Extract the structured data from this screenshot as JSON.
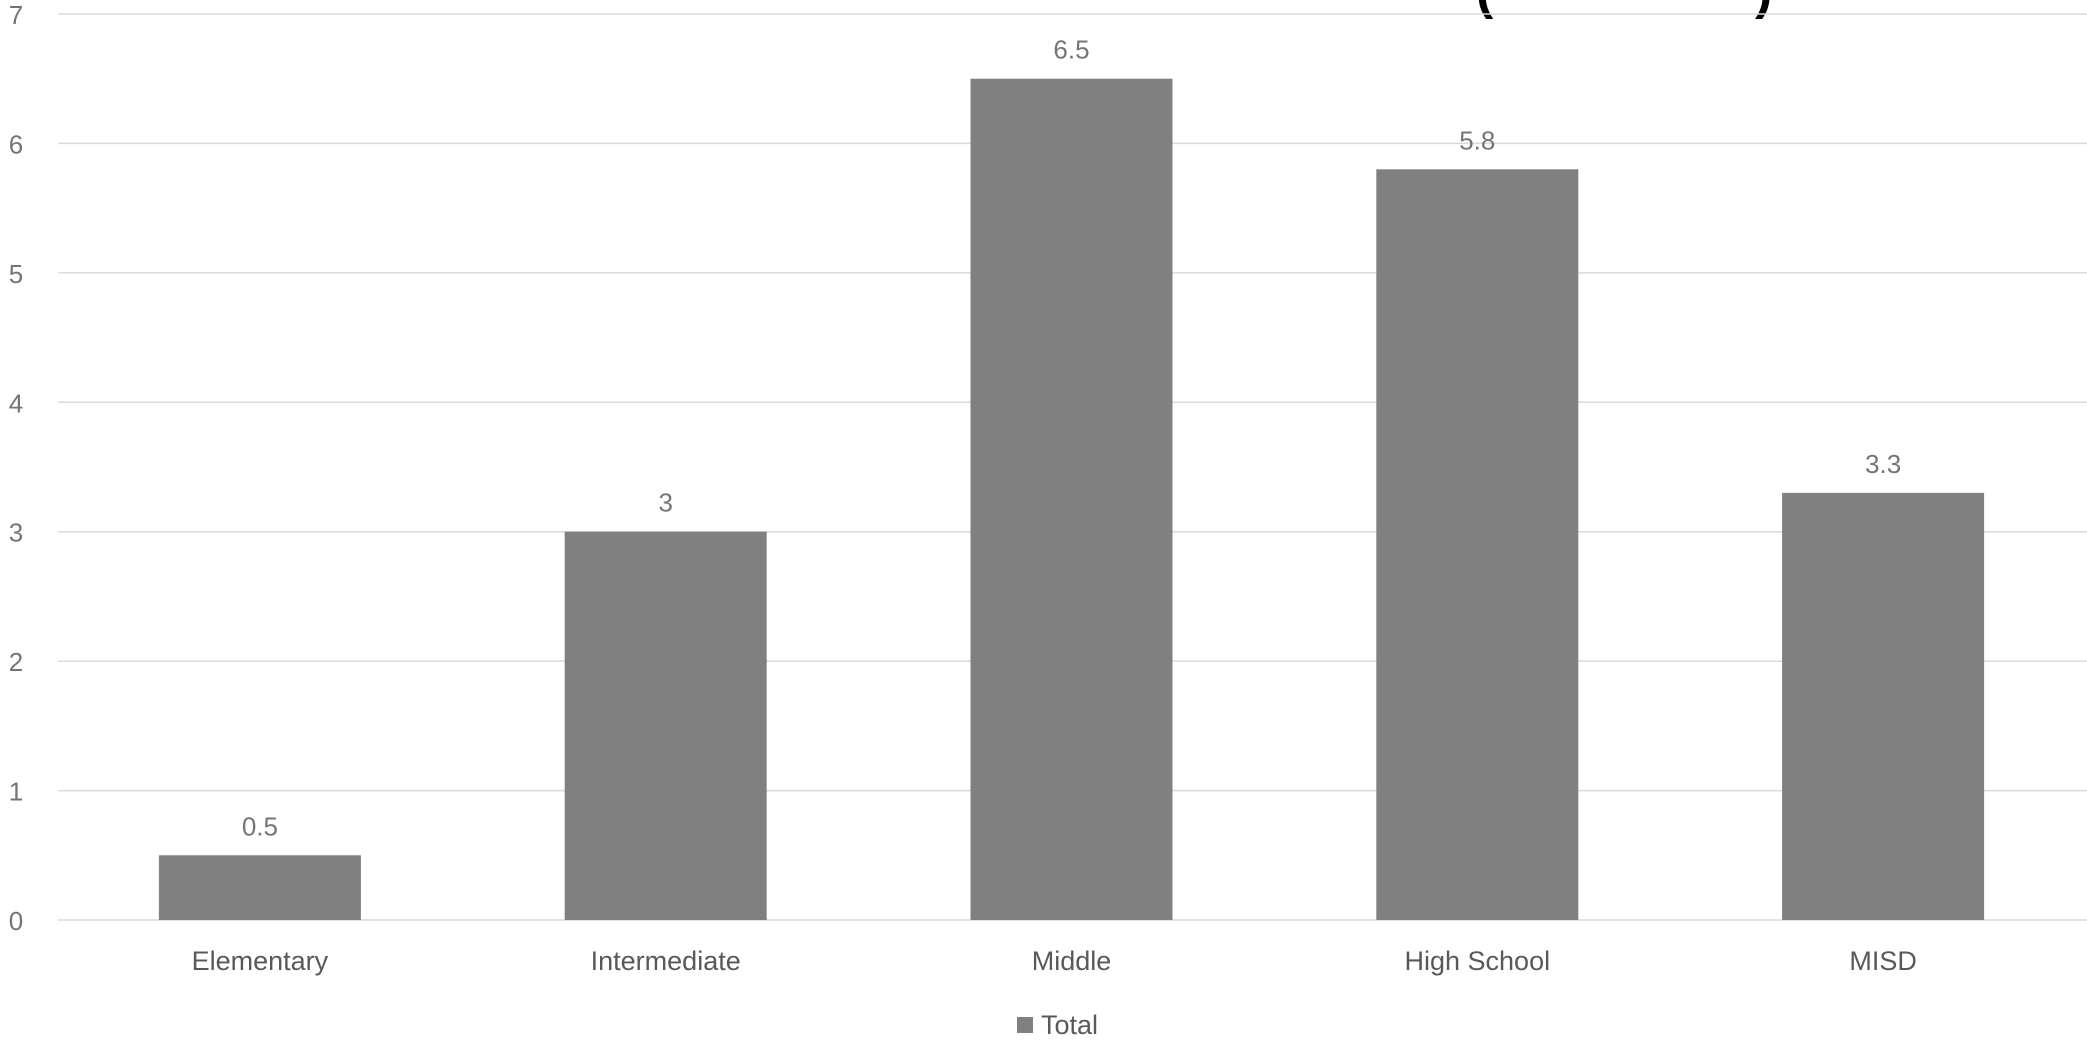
{
  "chart_data": {
    "type": "bar",
    "categories": [
      "Elementary",
      "Intermediate",
      "Middle",
      "High School",
      "MISD"
    ],
    "series": [
      {
        "name": "Total",
        "values": [
          0.5,
          3,
          6.5,
          5.8,
          3.3
        ]
      }
    ],
    "data_labels": [
      "0.5",
      "3",
      "6.5",
      "5.8",
      "3.3"
    ],
    "y_ticks": [
      0,
      1,
      2,
      3,
      4,
      5,
      6,
      7
    ],
    "ylim": [
      0,
      7
    ],
    "grid": true,
    "legend_position": "bottom",
    "title_fragment": "(",
    "title_fragment_end": ")",
    "colors": {
      "bar": "#808080",
      "grid": "#d9d9d9",
      "text": "#595959",
      "axis_text": "#757575",
      "legend_marker": "#808080"
    }
  }
}
